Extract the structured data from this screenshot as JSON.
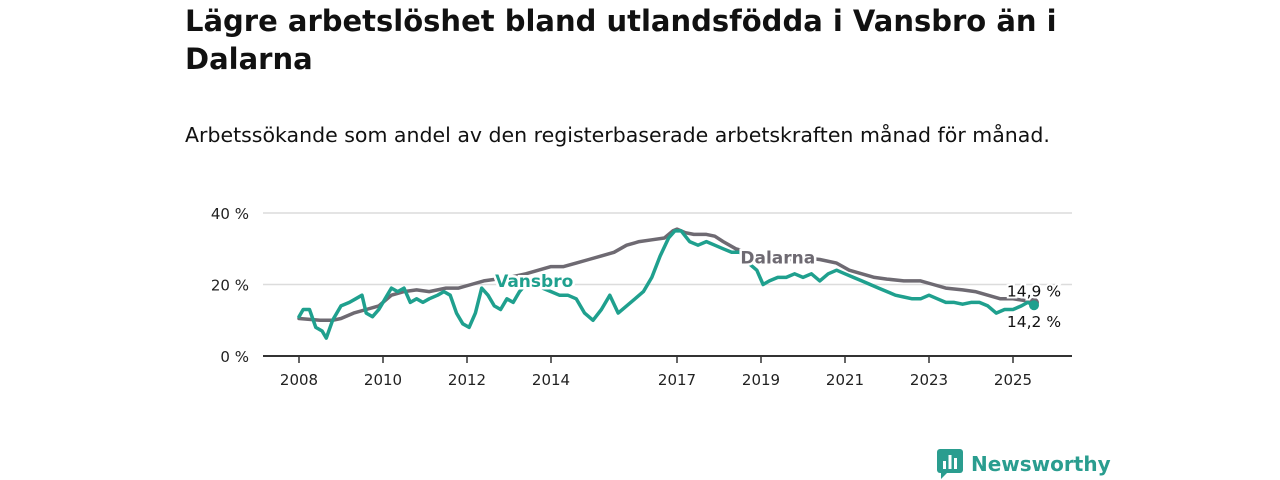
{
  "title": "Lägre arbetslöshet bland utlandsfödda i Vansbro än i Dalarna",
  "subtitle": "Arbetssökande som andel av den registerbaserade arbetskraften månad för månad.",
  "brand": "Newsworthy",
  "chart_data": {
    "type": "line",
    "ylim": [
      0,
      40
    ],
    "xlim": [
      2008,
      2025.9
    ],
    "yticks": [
      {
        "v": 0,
        "label": "0 %"
      },
      {
        "v": 20,
        "label": "20 %"
      },
      {
        "v": 40,
        "label": "40 %"
      }
    ],
    "xticks": [
      {
        "v": 2008,
        "label": "2008"
      },
      {
        "v": 2010,
        "label": "2010"
      },
      {
        "v": 2012,
        "label": "2012"
      },
      {
        "v": 2014,
        "label": "2014"
      },
      {
        "v": 2017,
        "label": "2017"
      },
      {
        "v": 2019,
        "label": "2019"
      },
      {
        "v": 2021,
        "label": "2021"
      },
      {
        "v": 2023,
        "label": "2023"
      },
      {
        "v": 2025,
        "label": "2025"
      }
    ],
    "series": [
      {
        "name": "Dalarna",
        "color": "#6e6a72",
        "end_label": "14,9 %",
        "points": [
          [
            2008,
            10.5
          ],
          [
            2008.5,
            10
          ],
          [
            2008.8,
            10
          ],
          [
            2009,
            10.5
          ],
          [
            2009.3,
            12
          ],
          [
            2009.6,
            13
          ],
          [
            2009.9,
            14
          ],
          [
            2010.2,
            17
          ],
          [
            2010.5,
            18
          ],
          [
            2010.8,
            18.5
          ],
          [
            2011.1,
            18
          ],
          [
            2011.5,
            19
          ],
          [
            2011.8,
            19
          ],
          [
            2012.1,
            20
          ],
          [
            2012.4,
            21
          ],
          [
            2012.7,
            21.5
          ],
          [
            2013,
            22
          ],
          [
            2013.4,
            23
          ],
          [
            2013.7,
            24
          ],
          [
            2014,
            25
          ],
          [
            2014.3,
            25
          ],
          [
            2014.6,
            26
          ],
          [
            2014.9,
            27
          ],
          [
            2015.2,
            28
          ],
          [
            2015.5,
            29
          ],
          [
            2015.8,
            31
          ],
          [
            2016.1,
            32
          ],
          [
            2016.4,
            32.5
          ],
          [
            2016.7,
            33
          ],
          [
            2016.9,
            35
          ],
          [
            2017,
            35.5
          ],
          [
            2017.2,
            34.5
          ],
          [
            2017.4,
            34
          ],
          [
            2017.7,
            34
          ],
          [
            2017.9,
            33.5
          ],
          [
            2018.1,
            32
          ],
          [
            2018.4,
            30
          ],
          [
            2018.7,
            29
          ],
          [
            2019,
            28
          ],
          [
            2019.3,
            27
          ],
          [
            2019.7,
            27
          ],
          [
            2020,
            27.5
          ],
          [
            2020.4,
            27
          ],
          [
            2020.8,
            26
          ],
          [
            2021.1,
            24
          ],
          [
            2021.4,
            23
          ],
          [
            2021.7,
            22
          ],
          [
            2022,
            21.5
          ],
          [
            2022.4,
            21
          ],
          [
            2022.8,
            21
          ],
          [
            2023.1,
            20
          ],
          [
            2023.4,
            19
          ],
          [
            2023.8,
            18.5
          ],
          [
            2024.1,
            18
          ],
          [
            2024.4,
            17
          ],
          [
            2024.7,
            16
          ],
          [
            2025,
            16
          ],
          [
            2025.3,
            15.5
          ],
          [
            2025.5,
            14.9
          ]
        ]
      },
      {
        "name": "Vansbro",
        "color": "#1fa08e",
        "end_label": "14,2 %",
        "points": [
          [
            2008,
            11
          ],
          [
            2008.1,
            13
          ],
          [
            2008.25,
            13
          ],
          [
            2008.4,
            8
          ],
          [
            2008.55,
            7
          ],
          [
            2008.65,
            5
          ],
          [
            2008.8,
            10
          ],
          [
            2009,
            14
          ],
          [
            2009.2,
            15
          ],
          [
            2009.35,
            16
          ],
          [
            2009.5,
            17
          ],
          [
            2009.6,
            12
          ],
          [
            2009.75,
            11
          ],
          [
            2009.9,
            13
          ],
          [
            2010.05,
            16
          ],
          [
            2010.2,
            19
          ],
          [
            2010.35,
            18
          ],
          [
            2010.5,
            19
          ],
          [
            2010.65,
            15
          ],
          [
            2010.8,
            16
          ],
          [
            2010.95,
            15
          ],
          [
            2011.1,
            16
          ],
          [
            2011.3,
            17
          ],
          [
            2011.45,
            18
          ],
          [
            2011.6,
            17
          ],
          [
            2011.75,
            12
          ],
          [
            2011.9,
            9
          ],
          [
            2012.05,
            8
          ],
          [
            2012.2,
            12
          ],
          [
            2012.35,
            19
          ],
          [
            2012.5,
            17
          ],
          [
            2012.65,
            14
          ],
          [
            2012.8,
            13
          ],
          [
            2012.95,
            16
          ],
          [
            2013.1,
            15
          ],
          [
            2013.25,
            18
          ],
          [
            2013.4,
            20
          ],
          [
            2013.6,
            22
          ],
          [
            2013.8,
            19
          ],
          [
            2014,
            18
          ],
          [
            2014.2,
            17
          ],
          [
            2014.4,
            17
          ],
          [
            2014.6,
            16
          ],
          [
            2014.8,
            12
          ],
          [
            2015,
            10
          ],
          [
            2015.2,
            13
          ],
          [
            2015.4,
            17
          ],
          [
            2015.6,
            12
          ],
          [
            2015.8,
            14
          ],
          [
            2016,
            16
          ],
          [
            2016.2,
            18
          ],
          [
            2016.4,
            22
          ],
          [
            2016.6,
            28
          ],
          [
            2016.8,
            33
          ],
          [
            2016.95,
            35
          ],
          [
            2017.1,
            35
          ],
          [
            2017.3,
            32
          ],
          [
            2017.5,
            31
          ],
          [
            2017.7,
            32
          ],
          [
            2017.9,
            31
          ],
          [
            2018.1,
            30
          ],
          [
            2018.3,
            29
          ],
          [
            2018.5,
            29
          ],
          [
            2018.7,
            26
          ],
          [
            2018.9,
            24
          ],
          [
            2019.05,
            20
          ],
          [
            2019.2,
            21
          ],
          [
            2019.4,
            22
          ],
          [
            2019.6,
            22
          ],
          [
            2019.8,
            23
          ],
          [
            2020,
            22
          ],
          [
            2020.2,
            23
          ],
          [
            2020.4,
            21
          ],
          [
            2020.6,
            23
          ],
          [
            2020.8,
            24
          ],
          [
            2021,
            23
          ],
          [
            2021.2,
            22
          ],
          [
            2021.4,
            21
          ],
          [
            2021.6,
            20
          ],
          [
            2021.8,
            19
          ],
          [
            2022,
            18
          ],
          [
            2022.2,
            17
          ],
          [
            2022.4,
            16.5
          ],
          [
            2022.6,
            16
          ],
          [
            2022.8,
            16
          ],
          [
            2023,
            17
          ],
          [
            2023.2,
            16
          ],
          [
            2023.4,
            15
          ],
          [
            2023.6,
            15
          ],
          [
            2023.8,
            14.5
          ],
          [
            2024,
            15
          ],
          [
            2024.2,
            15
          ],
          [
            2024.4,
            14
          ],
          [
            2024.6,
            12
          ],
          [
            2024.8,
            13
          ],
          [
            2025,
            13
          ],
          [
            2025.2,
            14
          ],
          [
            2025.35,
            15
          ],
          [
            2025.5,
            14.2
          ]
        ]
      }
    ]
  }
}
